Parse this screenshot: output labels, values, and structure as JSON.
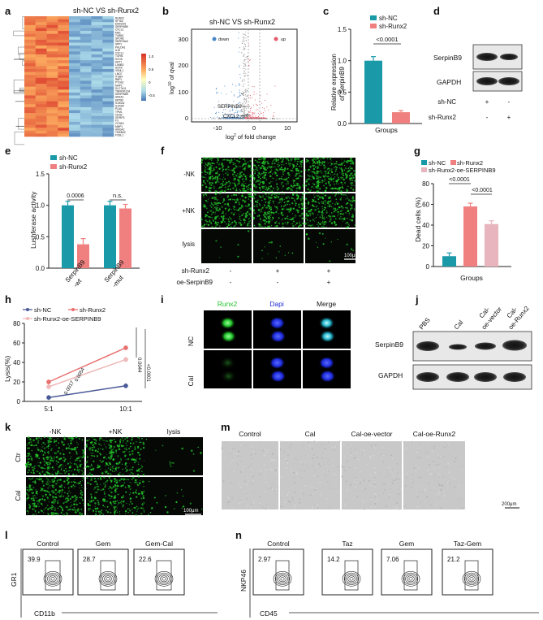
{
  "colors": {
    "nc": "#1a9aa8",
    "runx2": "#f08080",
    "oe": "#e8b4be",
    "line_nc": "#4a5a98",
    "line_runx2": "#e87070",
    "line_oe": "#f0b8b8",
    "heat_hi": "#d73027",
    "heat_lo": "#4575b4",
    "green": "#22c22a",
    "blue": "#1a28d8"
  },
  "panels": {
    "a": "a",
    "b": "b",
    "c": "c",
    "d": "d",
    "e": "e",
    "f": "f",
    "g": "g",
    "h": "h",
    "i": "i",
    "j": "j",
    "k": "k",
    "l": "l",
    "m": "m",
    "n": "n"
  },
  "a": {
    "header": "sh-NC   VS   sh-Runx2",
    "scale": [
      "1.0",
      "0.5",
      "0",
      "-0.5"
    ],
    "genes": [
      "RUNX2",
      "SFTA3",
      "EMX2OS",
      "SERPINB9",
      "CXCL2",
      "MN1",
      "TUBB3",
      "SPON2",
      "SERPINA3",
      "SPP1",
      "PHLDA1",
      "IL32",
      "CXCL1",
      "TGFBI",
      "SCG5",
      "KRT7",
      "LAMB3",
      "SOX9",
      "VSNL1",
      "LMO7",
      "ITGB4",
      "RBP1",
      "PTGS2",
      "MAP2",
      "SLC7A11",
      "TNFRSF12A",
      "SERPINB5",
      "ANXA1",
      "KRT80",
      "S100A2",
      "IL1RAP",
      "PLAU",
      "TPM1",
      "CDH2",
      "IGFBP3",
      "F3",
      "CCND1",
      "MMP1",
      "HMGA2",
      "TMSB4X",
      "FOSL1"
    ]
  },
  "b": {
    "header": "sh-NC  VS  sh-Runx2",
    "legend_down": "down",
    "legend_up": "up",
    "ylabel_base": "log",
    "ylabel_sup": "10",
    "ylabel_rest": " of qval",
    "xlabel_base": "log",
    "xlabel_sup": "2",
    "xlabel_rest": " of fold change",
    "yticks": [
      "300",
      "200",
      "100",
      "0"
    ],
    "xticks": [
      "-10",
      "0",
      "10"
    ],
    "lab1": "SERPINB9",
    "lab2": "CXCL2"
  },
  "chart_data": [
    {
      "panel": "c",
      "type": "bar",
      "categories": [
        "sh-NC",
        "sh-Runx2"
      ],
      "values": [
        1.0,
        0.18
      ],
      "ylabel": "Relative expression of SerpinB9",
      "xlabel": "Groups",
      "ylim": [
        0,
        1.5
      ],
      "yticks": [
        "1.5",
        "1.0",
        "0.5",
        "0.0"
      ],
      "annotation": "<0.0001",
      "legend": [
        "sh-NC",
        "sh-Runx2"
      ]
    },
    {
      "panel": "e",
      "type": "bar",
      "categories": [
        "SerpinB9-wt",
        "SerpinB9-mut"
      ],
      "series": [
        {
          "name": "sh-NC",
          "values": [
            1.0,
            1.0
          ]
        },
        {
          "name": "sh-Runx2",
          "values": [
            0.38,
            0.95
          ]
        }
      ],
      "ylabel": "Lusiferase activity",
      "ylim": [
        0,
        1.5
      ],
      "yticks": [
        "1.5",
        "1.0",
        "0.5",
        "0.0"
      ],
      "annotations": [
        "0.0006",
        "n.s."
      ]
    },
    {
      "panel": "g",
      "type": "bar",
      "categories": [
        "sh-NC",
        "sh-Runx2",
        "sh-Runx2-oe-SERPINB9"
      ],
      "values": [
        10,
        58,
        41
      ],
      "ylabel": "Dead cells (%)",
      "xlabel": "Groups",
      "ylim": [
        0,
        80
      ],
      "yticks": [
        "80",
        "60",
        "40",
        "20",
        "0"
      ],
      "annotations": [
        "<0.0001",
        "<0.0001"
      ],
      "legend": [
        "sh-NC",
        "sh-Runx2",
        "sh-Runx2-oe-SERPINB9"
      ]
    },
    {
      "panel": "h",
      "type": "line",
      "categories": [
        "5:1",
        "10:1"
      ],
      "series": [
        {
          "name": "sh-NC",
          "values": [
            4,
            16
          ]
        },
        {
          "name": "sh-Runx2",
          "values": [
            20,
            55
          ]
        },
        {
          "name": "sh-Runx2-oe-SERPINB9",
          "values": [
            15,
            43
          ]
        }
      ],
      "ylabel": "Lysis(%)",
      "ylim": [
        0,
        80
      ],
      "yticks": [
        "80",
        "60",
        "40",
        "20",
        "0"
      ],
      "annotations": [
        "0.0044",
        "0.0054",
        "0.0017",
        "<0.0001"
      ]
    }
  ],
  "c": {
    "legend_nc": "sh-NC",
    "legend_r": "sh-Runx2",
    "yl1": "Relative expression",
    "yl2": "of SerpinB9",
    "xlabel": "Groups",
    "ann": "<0.0001",
    "yticks": [
      "1.5",
      "1.0",
      "0.5",
      "0.0"
    ]
  },
  "d": {
    "band1": "SerpinB9",
    "band2": "GAPDH",
    "row1": "sh-NC",
    "row2": "sh-Runx2",
    "r1v": [
      "+",
      "-"
    ],
    "r2v": [
      "-",
      "+"
    ]
  },
  "e": {
    "legend_nc": "sh-NC",
    "legend_r": "sh-Runx2",
    "ylabel": "Lushferase activity",
    "ann1": "0.0006",
    "ann2": "n.s.",
    "x1a": "SerpinB9",
    "x1b": "-wt",
    "x2a": "SerpinB9",
    "x2b": "-mut",
    "yticks": [
      "1.5",
      "1.0",
      "0.5",
      "0.0"
    ]
  },
  "f": {
    "rows": [
      "-NK",
      "+NK",
      "lysis"
    ],
    "scale": "100μm",
    "c1": "sh-Runx2",
    "c2": "oe-SerpinB9",
    "c1v": [
      "-",
      "+",
      "+"
    ],
    "c2v": [
      "-",
      "-",
      "+"
    ]
  },
  "g": {
    "leg1": "sh-NC",
    "leg2": "sh-Runx2",
    "leg3": "sh-Runx2-oe-SERPINB9",
    "ann1": "<0.0001",
    "ann2": "<0.0001",
    "ylabel": "Dead cells (%)",
    "xlabel": "Groups",
    "yticks": [
      "80",
      "60",
      "40",
      "20",
      "0"
    ]
  },
  "h": {
    "leg1": "sh-NC",
    "leg2": "sh-Runx2",
    "leg3": "sh-Runx2-oe-SERPINB9",
    "ylabel": "Lysis(%)",
    "xt1": "5:1",
    "xt2": "10:1",
    "a1": "0.0044",
    "a2": "0.0054",
    "a3": "0.0017",
    "a4": "<0.0001",
    "yticks": [
      "80",
      "60",
      "40",
      "20",
      "0"
    ]
  },
  "i": {
    "cols": [
      "Runx2",
      "Dapi",
      "Merge"
    ],
    "rows": [
      "NC",
      "Cal"
    ],
    "scale": "10μm"
  },
  "j": {
    "cols": [
      "PBS",
      "Cal",
      "Cal-",
      "oe-vector",
      "Cal-",
      "oe-Runx2"
    ],
    "band1": "SerpinB9",
    "band2": "GAPDH"
  },
  "k": {
    "cols": [
      "-NK",
      "+NK",
      "lysis"
    ],
    "rows": [
      "Ctr",
      "Cal"
    ],
    "scale": "100μm"
  },
  "m": {
    "cols": [
      "Control",
      "Cal",
      "Cal-oe-vector",
      "Cal-oe-Runx2"
    ],
    "scale": "200μm"
  },
  "l": {
    "cols": [
      "Control",
      "Gem",
      "Gem-Cal"
    ],
    "vals": [
      "39.9",
      "28.7",
      "22.6"
    ],
    "ylabel": "GR1",
    "xlabel": "CD11b"
  },
  "n": {
    "cols": [
      "Control",
      "Taz",
      "Gem",
      "Taz-Gem"
    ],
    "vals": [
      "2.97",
      "14.2",
      "7.06",
      "21.2"
    ],
    "ylabel": "NKP46",
    "xlabel": "CD45"
  }
}
